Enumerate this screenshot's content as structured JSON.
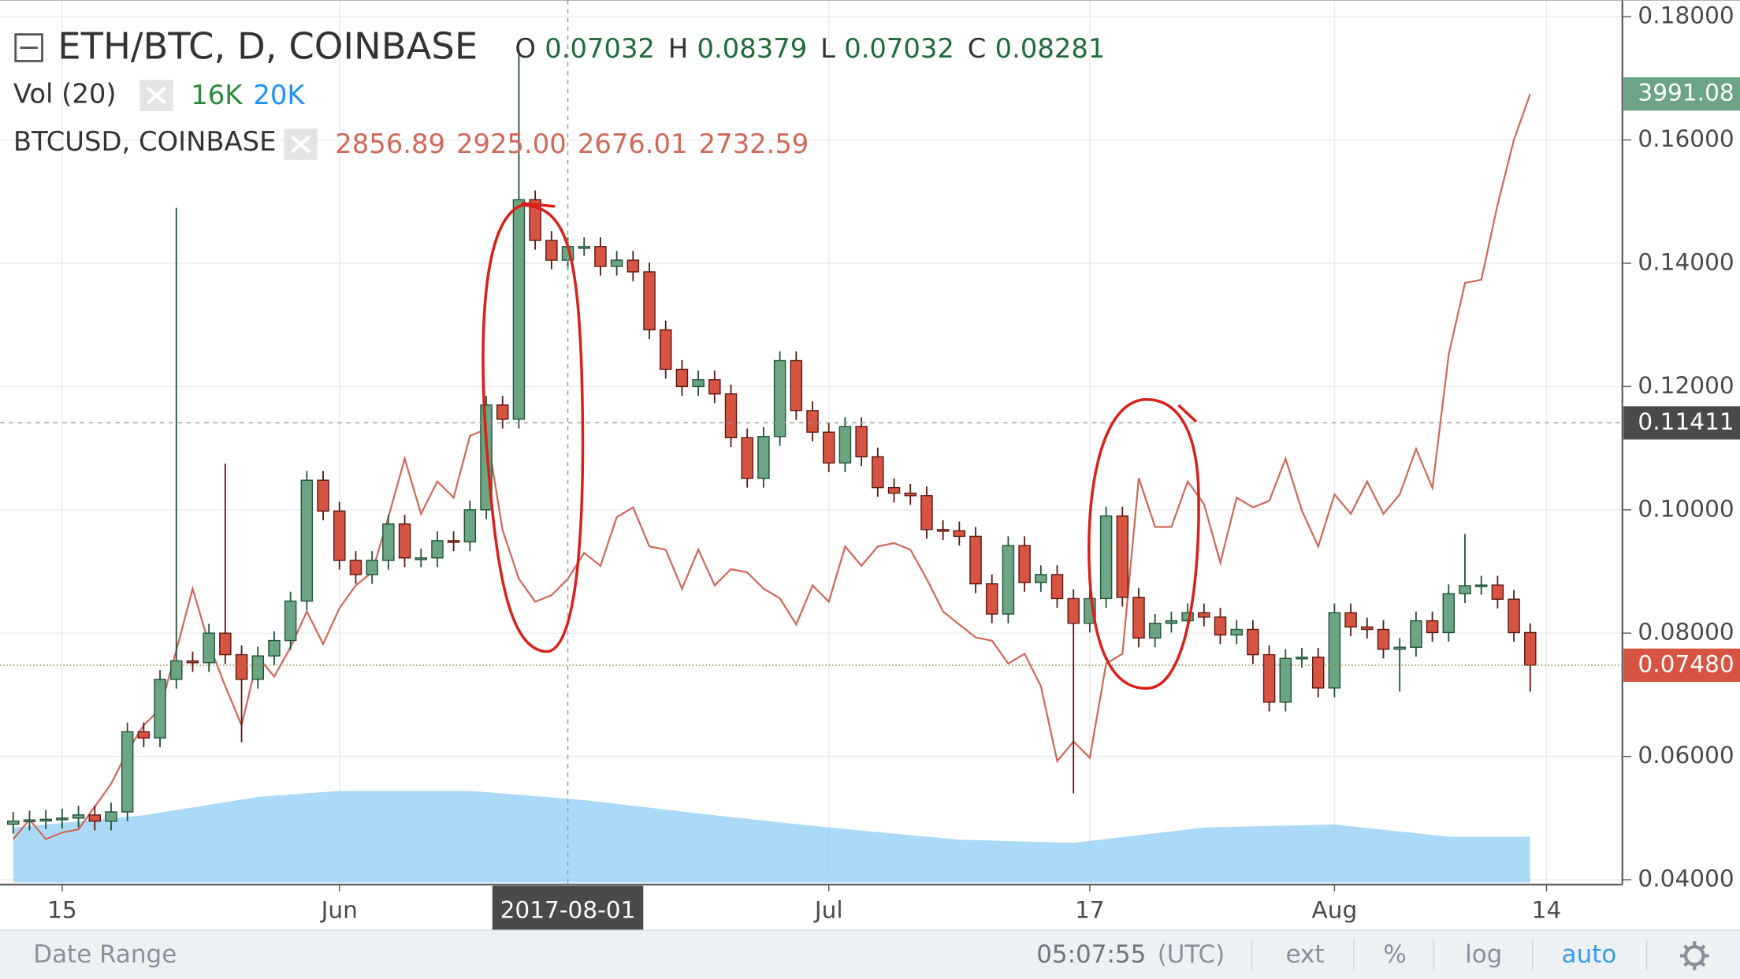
{
  "chart_data": {
    "type": "candlestick",
    "title": "ETH/BTC, D, COINBASE",
    "ohlc_legend": {
      "labels": [
        "O",
        "H",
        "L",
        "C"
      ],
      "value_labels": [
        "0.07032",
        "0.08379",
        "0.07032",
        "0.08281"
      ]
    },
    "volume_legend": {
      "name": "Vol (20)",
      "value_labels": [
        "16K",
        "20K"
      ],
      "colors": [
        "#2a8a3a",
        "#1e90ff"
      ]
    },
    "up_color": "#6ba583",
    "up_border": "#225437",
    "down_color": "#d75442",
    "down_border": "#5b1a13",
    "x": [
      -3,
      -2,
      -1,
      0,
      1,
      2,
      3,
      4,
      5,
      6,
      7,
      8,
      9,
      10,
      11,
      12,
      13,
      14,
      15,
      16,
      17,
      18,
      19,
      20,
      21,
      22,
      23,
      24,
      25,
      26,
      27,
      28,
      29,
      30,
      31,
      32,
      33,
      34,
      35,
      36,
      37,
      38,
      39,
      40,
      41,
      42,
      43,
      44,
      45,
      46,
      47,
      48,
      49,
      50,
      51,
      52,
      53,
      54,
      55,
      56,
      57,
      58,
      59,
      60,
      61,
      62,
      63,
      64,
      65,
      66,
      67,
      68,
      69,
      70,
      71,
      72,
      73,
      74,
      75,
      76,
      77,
      78,
      79,
      80,
      81,
      82,
      83,
      84,
      85,
      86,
      87,
      88,
      89,
      90
    ],
    "open": [
      0.049,
      0.0495,
      0.0497,
      0.0498,
      0.05,
      0.0505,
      0.0495,
      0.051,
      0.064,
      0.063,
      0.0725,
      0.0755,
      0.0752,
      0.08,
      0.0765,
      0.0725,
      0.0763,
      0.0788,
      0.0852,
      0.1048,
      0.0998,
      0.0918,
      0.0895,
      0.0918,
      0.0977,
      0.0922,
      0.0922,
      0.095,
      0.0948,
      0.1,
      0.117,
      0.1147,
      0.1503,
      0.1437,
      0.1405,
      0.1427,
      0.1427,
      0.1395,
      0.1405,
      0.1386,
      0.1292,
      0.1228,
      0.12,
      0.1211,
      0.1188,
      0.1117,
      0.1051,
      0.1119,
      0.1242,
      0.1161,
      0.1126,
      0.1076,
      0.1135,
      0.1086,
      0.1036,
      0.1027,
      0.1023,
      0.0968,
      0.0966,
      0.0957,
      0.088,
      0.0831,
      0.0942,
      0.0882,
      0.0895,
      0.0856,
      0.0816,
      0.0856,
      0.099,
      0.0858,
      0.0792,
      0.0816,
      0.082,
      0.0833,
      0.0826,
      0.0797,
      0.0806,
      0.0765,
      0.0688,
      0.0759,
      0.0761,
      0.0711,
      0.0833,
      0.081,
      0.0806,
      0.0774,
      0.0777,
      0.082,
      0.0801,
      0.0864,
      0.0877,
      0.0878,
      0.0855,
      0.0801
    ],
    "high": [
      0.051,
      0.0512,
      0.0513,
      0.0515,
      0.052,
      0.052,
      0.0525,
      0.0655,
      0.0655,
      0.074,
      0.149,
      0.077,
      0.0815,
      0.1075,
      0.078,
      0.0778,
      0.0803,
      0.0867,
      0.1063,
      0.1063,
      0.1013,
      0.0933,
      0.0933,
      0.0992,
      0.0992,
      0.0937,
      0.0965,
      0.0965,
      0.1015,
      0.1185,
      0.1185,
      0.1746,
      0.1518,
      0.1452,
      0.1442,
      0.1442,
      0.1442,
      0.142,
      0.142,
      0.1401,
      0.1307,
      0.1243,
      0.1226,
      0.1226,
      0.1203,
      0.1132,
      0.1134,
      0.1257,
      0.1257,
      0.1176,
      0.1141,
      0.115,
      0.115,
      0.1101,
      0.1051,
      0.1042,
      0.1038,
      0.0983,
      0.0981,
      0.0972,
      0.0895,
      0.0957,
      0.0957,
      0.091,
      0.091,
      0.0871,
      0.0871,
      0.1005,
      0.1005,
      0.0873,
      0.0831,
      0.0835,
      0.0848,
      0.0848,
      0.0841,
      0.0821,
      0.0821,
      0.078,
      0.0774,
      0.0776,
      0.0776,
      0.0848,
      0.0848,
      0.0825,
      0.0821,
      0.0792,
      0.0835,
      0.0835,
      0.0879,
      0.0961,
      0.0893,
      0.0893,
      0.087,
      0.0816
    ],
    "low": [
      0.0475,
      0.048,
      0.0482,
      0.0483,
      0.0485,
      0.048,
      0.048,
      0.0495,
      0.0615,
      0.0615,
      0.071,
      0.0737,
      0.0737,
      0.075,
      0.0623,
      0.071,
      0.0748,
      0.0773,
      0.0837,
      0.0983,
      0.0903,
      0.088,
      0.088,
      0.0903,
      0.0907,
      0.0907,
      0.0907,
      0.0933,
      0.0933,
      0.0985,
      0.1132,
      0.1132,
      0.1422,
      0.139,
      0.139,
      0.1412,
      0.138,
      0.138,
      0.1371,
      0.1277,
      0.1213,
      0.1185,
      0.1185,
      0.1173,
      0.1102,
      0.1036,
      0.1036,
      0.1104,
      0.1146,
      0.1111,
      0.1061,
      0.1061,
      0.1071,
      0.1021,
      0.1012,
      0.1008,
      0.0953,
      0.0951,
      0.0942,
      0.0865,
      0.0816,
      0.0816,
      0.0867,
      0.0867,
      0.0841,
      0.054,
      0.0801,
      0.0841,
      0.0843,
      0.0777,
      0.0777,
      0.0801,
      0.0805,
      0.0811,
      0.0782,
      0.0782,
      0.075,
      0.0673,
      0.0673,
      0.0744,
      0.0696,
      0.0696,
      0.0795,
      0.0791,
      0.0759,
      0.0705,
      0.0762,
      0.0786,
      0.0786,
      0.0849,
      0.0862,
      0.084,
      0.0786,
      0.0705
    ],
    "close": [
      0.0495,
      0.0497,
      0.0498,
      0.05,
      0.0505,
      0.0495,
      0.051,
      0.064,
      0.063,
      0.0725,
      0.0755,
      0.0752,
      0.08,
      0.0765,
      0.0725,
      0.0763,
      0.0788,
      0.0852,
      0.1048,
      0.0998,
      0.0918,
      0.0895,
      0.0918,
      0.0977,
      0.0922,
      0.0922,
      0.095,
      0.0948,
      0.1,
      0.117,
      0.1147,
      0.1503,
      0.1437,
      0.1405,
      0.1427,
      0.1427,
      0.1395,
      0.1405,
      0.1386,
      0.1292,
      0.1228,
      0.12,
      0.1211,
      0.1188,
      0.1117,
      0.1051,
      0.1119,
      0.1242,
      0.1161,
      0.1126,
      0.1076,
      0.1135,
      0.1086,
      0.1036,
      0.1027,
      0.1023,
      0.0968,
      0.0966,
      0.0957,
      0.088,
      0.0831,
      0.0942,
      0.0882,
      0.0895,
      0.0856,
      0.0816,
      0.0856,
      0.099,
      0.0858,
      0.0792,
      0.0816,
      0.082,
      0.0833,
      0.0826,
      0.0797,
      0.0806,
      0.0765,
      0.0688,
      0.0759,
      0.0761,
      0.0711,
      0.0833,
      0.081,
      0.0806,
      0.0774,
      0.0777,
      0.082,
      0.0801,
      0.0864,
      0.0877,
      0.0878,
      0.0855,
      0.0801,
      0.0748
    ],
    "compare": {
      "name": "BTCUSD, COINBASE",
      "color": "#cf6a5b",
      "axis": "y2",
      "ohlc_labels": [
        "2856.89",
        "2925.00",
        "2676.01",
        "2732.59"
      ],
      "values": [
        1700,
        1760,
        1700,
        1720,
        1730,
        1800,
        1870,
        1970,
        2050,
        2100,
        2280,
        2470,
        2300,
        2170,
        2050,
        2260,
        2200,
        2290,
        2400,
        2300,
        2410,
        2480,
        2520,
        2690,
        2870,
        2700,
        2800,
        2750,
        2940,
        2960,
        2650,
        2500,
        2430,
        2450,
        2500,
        2580,
        2540,
        2690,
        2720,
        2600,
        2590,
        2470,
        2590,
        2480,
        2530,
        2520,
        2470,
        2440,
        2360,
        2480,
        2430,
        2600,
        2540,
        2600,
        2610,
        2590,
        2500,
        2400,
        2360,
        2320,
        2310,
        2240,
        2270,
        2170,
        1940,
        2000,
        1950,
        2240,
        2270,
        2810,
        2660,
        2660,
        2800,
        2730,
        2550,
        2750,
        2720,
        2740,
        2870,
        2710,
        2600,
        2760,
        2700,
        2800,
        2700,
        2760,
        2900,
        2780,
        3190,
        3410,
        3420,
        3650,
        3850,
        3991.08
      ],
      "last": {
        "value": 3991.08,
        "label": "3991.08"
      }
    },
    "volume_ma": {
      "color": "#8fcdf5",
      "x": [
        -3,
        5,
        12,
        17,
        25,
        32,
        40,
        47,
        55,
        62,
        70,
        78,
        85,
        90
      ],
      "values": [
        18,
        22,
        28,
        30,
        30,
        27,
        22,
        18,
        14,
        13,
        18,
        19,
        15,
        15
      ]
    },
    "vlim": [
      0,
      60
    ],
    "xlim": [
      -3.81,
      95.65
    ],
    "ylim": [
      0.0392,
      0.1827
    ],
    "y2lim": [
      1560,
      4280
    ],
    "xticks": [
      {
        "value": 0,
        "label": "15"
      },
      {
        "value": 17,
        "label": "Jun"
      },
      {
        "value": 47,
        "label": "Jul"
      },
      {
        "value": 63,
        "label": "17"
      },
      {
        "value": 78,
        "label": "Aug"
      },
      {
        "value": 91,
        "label": "14"
      }
    ],
    "yticks": [
      {
        "value": 0.18,
        "label": "0.18000"
      },
      {
        "value": 0.16,
        "label": "0.16000"
      },
      {
        "value": 0.14,
        "label": "0.14000"
      },
      {
        "value": 0.12,
        "label": "0.12000"
      },
      {
        "value": 0.1,
        "label": "0.10000"
      },
      {
        "value": 0.08,
        "label": "0.08000"
      },
      {
        "value": 0.06,
        "label": "0.06000"
      },
      {
        "value": 0.04,
        "label": "0.04000"
      }
    ],
    "grid": true,
    "crosshair": {
      "x": 31,
      "x_label": "2017-08-01",
      "value": 0.11411,
      "label": "0.11411"
    },
    "last_price": {
      "value": 0.0748,
      "label": "0.07480"
    }
  },
  "toolbar": {
    "date_range": "Date Range",
    "time": "05:07:55",
    "timezone": "(UTC)",
    "buttons": [
      "ext",
      "%",
      "log",
      "auto"
    ]
  }
}
